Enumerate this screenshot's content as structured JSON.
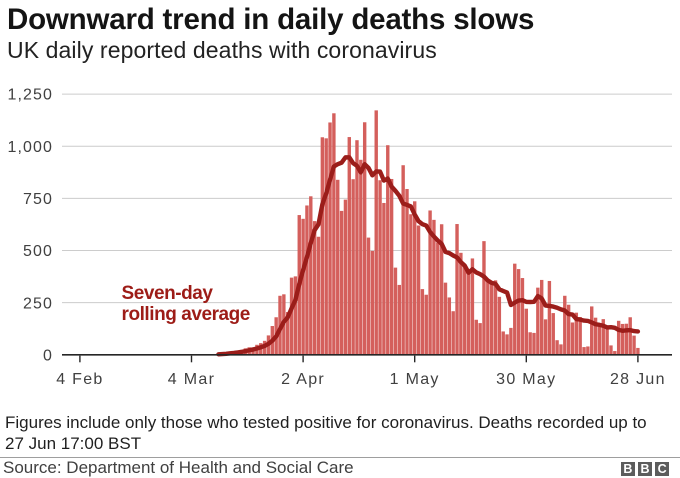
{
  "header": {
    "title": "Downward trend in daily deaths slows",
    "subtitle": "UK daily reported deaths with coronavirus"
  },
  "chart_data": {
    "type": "bar",
    "title": "UK daily reported deaths with coronavirus",
    "xlabel": "",
    "ylabel": "",
    "ylim": [
      0,
      1250
    ],
    "grid": "horizontal",
    "y_ticks": [
      {
        "value": 0,
        "label": "0"
      },
      {
        "value": 250,
        "label": "250"
      },
      {
        "value": 500,
        "label": "500"
      },
      {
        "value": 750,
        "label": "750"
      },
      {
        "value": 1000,
        "label": "1,000"
      },
      {
        "value": 1250,
        "label": "1,250"
      }
    ],
    "x_ticks": [
      {
        "label": "4 Feb",
        "day_offset": 0
      },
      {
        "label": "4 Mar",
        "day_offset": 29
      },
      {
        "label": "2 Apr",
        "day_offset": 58
      },
      {
        "label": "1 May",
        "day_offset": 87
      },
      {
        "label": "30 May",
        "day_offset": 116
      },
      {
        "label": "28 Jun",
        "day_offset": 145
      }
    ],
    "x_range_days": 145,
    "series": [
      {
        "name": "Daily reported deaths",
        "type": "bar",
        "start_day_offset": 30,
        "start_date": "5 Mar 2020",
        "values": [
          1,
          1,
          1,
          2,
          3,
          4,
          5,
          8,
          11,
          15,
          15,
          20,
          24,
          31,
          36,
          36,
          48,
          56,
          67,
          93,
          138,
          180,
          283,
          290,
          205,
          370,
          376,
          670,
          652,
          716,
          760,
          641,
          566,
          1043,
          1038,
          1114,
          1158,
          839,
          690,
          744,
          1044,
          842,
          1029,
          935,
          1115,
          562,
          498,
          1172,
          837,
          728,
          1005,
          843,
          418,
          335,
          909,
          795,
          674,
          736,
          620,
          315,
          288,
          692,
          647,
          538,
          626,
          346,
          275,
          209,
          627,
          489,
          420,
          389,
          462,
          168,
          152,
          545,
          358,
          340,
          357,
          278,
          112,
          98,
          129,
          437,
          411,
          368,
          221,
          108,
          105,
          322,
          359,
          170,
          354,
          200,
          70,
          50,
          283,
          240,
          155,
          202,
          181,
          37,
          40,
          232,
          178,
          135,
          171,
          126,
          45,
          18,
          163,
          148,
          149,
          180,
          92,
          33
        ]
      },
      {
        "name": "Seven-day rolling average",
        "type": "line",
        "derivation": "7-day trailing mean of daily values, drawn from 11 Mar 2020"
      }
    ],
    "annotation": {
      "line1": "Seven-day",
      "line2": "rolling average"
    }
  },
  "footnote": {
    "line1": "Figures include only those who tested positive for coronavirus. Deaths recorded up to",
    "line2": "27 Jun 17:00 BST"
  },
  "source": "Source: Department of Health and Social Care",
  "logo": {
    "letters": [
      "B",
      "B",
      "C"
    ]
  },
  "colors": {
    "bar": "#d45f5c",
    "line": "#9b1d1a",
    "annotation_text": "#9d1c17",
    "title": "#141414",
    "subtitle": "#222222",
    "axis_labels": "#404040",
    "gridline": "#cccccc",
    "axis_line": "#262626",
    "logo_box": "#5c5c5c"
  }
}
